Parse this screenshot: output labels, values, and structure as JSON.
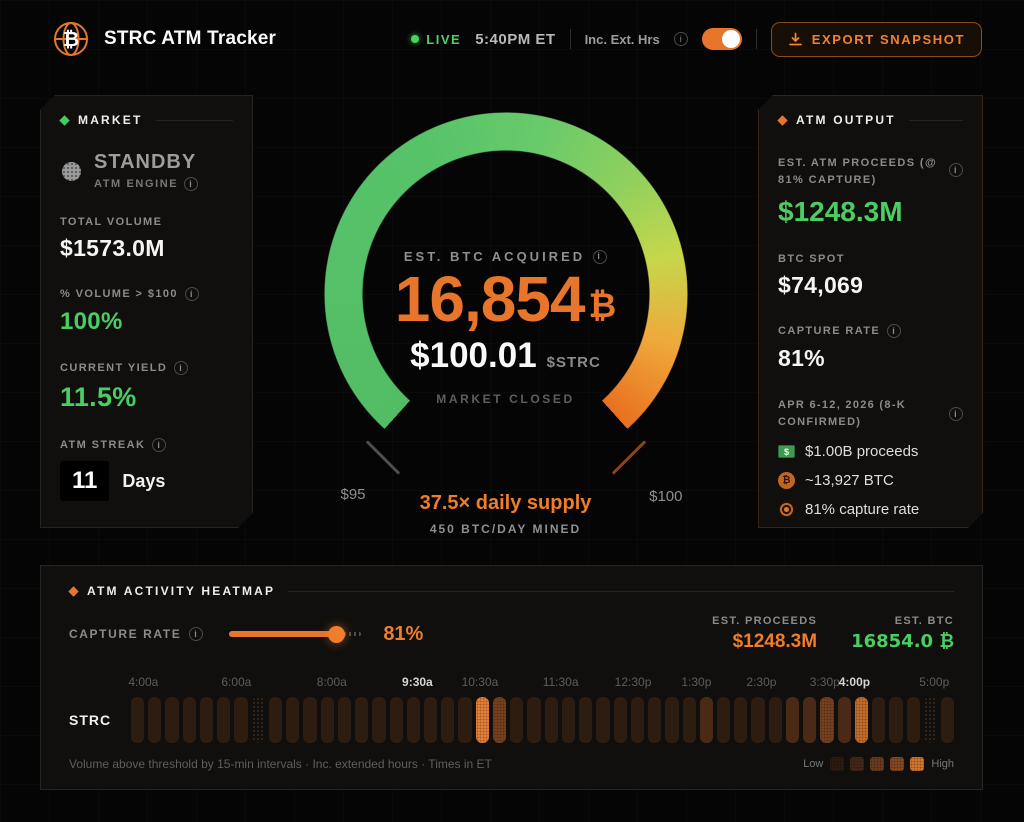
{
  "header": {
    "title": "STRC ATM Tracker",
    "live_label": "LIVE",
    "time": "5:40PM ET",
    "ext_hours_label": "Inc. Ext. Hrs",
    "ext_hours_on": true,
    "export_label": "EXPORT SNAPSHOT"
  },
  "colors": {
    "accent_orange": "#e8752c",
    "accent_green": "#4ccd63",
    "live_green": "#49d35e"
  },
  "market": {
    "section_title": "MARKET",
    "engine_status": "STANDBY",
    "engine_label": "ATM ENGINE",
    "total_volume_label": "TOTAL VOLUME",
    "total_volume": "$1573.0M",
    "pct_volume_label": "% VOLUME > $100",
    "pct_volume": "100%",
    "yield_label": "CURRENT YIELD",
    "yield_value": "11.5%",
    "streak_label": "ATM STREAK",
    "streak_value": "11",
    "streak_unit": "Days"
  },
  "gauge": {
    "label": "EST. BTC ACQUIRED",
    "btc_value": "16,854",
    "btc_symbol": "₿",
    "price": "$100.01",
    "ticker": "$STRC",
    "status": "MARKET CLOSED",
    "min_label": "$95",
    "max_label": "$100",
    "supply_line": "37.5× daily supply",
    "mined_line": "450 BTC/DAY MINED"
  },
  "atm_output": {
    "section_title": "ATM OUTPUT",
    "proceeds_label": "EST. ATM PROCEEDS (@ 81% CAPTURE)",
    "proceeds": "$1248.3M",
    "spot_label": "BTC SPOT",
    "spot": "$74,069",
    "capture_label": "CAPTURE RATE",
    "capture": "81%",
    "schedule_label": "APR 6-12, 2026 (8-K CONFIRMED)",
    "schedule": [
      {
        "icon": "cash-icon",
        "text": "$1.00B proceeds"
      },
      {
        "icon": "btc-icon",
        "text": "~13,927 BTC"
      },
      {
        "icon": "target-icon",
        "text": "81% capture rate"
      }
    ]
  },
  "heatmap": {
    "section_title": "ATM ACTIVITY HEATMAP",
    "capture_label": "CAPTURE RATE",
    "capture_pct": "81%",
    "slider_value": 81,
    "est_proceeds_label": "EST. PROCEEDS",
    "est_proceeds": "$1248.3M",
    "est_btc_label": "EST. BTC",
    "est_btc": "16854.0 ₿",
    "row_label": "STRC",
    "time_labels": [
      {
        "t": "4:00a",
        "x": 1.5,
        "strong": false
      },
      {
        "t": "6:00a",
        "x": 12.8,
        "strong": false
      },
      {
        "t": "8:00a",
        "x": 24.4,
        "strong": false
      },
      {
        "t": "9:30a",
        "x": 34.8,
        "strong": true
      },
      {
        "t": "10:30a",
        "x": 42.4,
        "strong": false
      },
      {
        "t": "11:30a",
        "x": 52.2,
        "strong": false
      },
      {
        "t": "12:30p",
        "x": 61.0,
        "strong": false
      },
      {
        "t": "1:30p",
        "x": 68.7,
        "strong": false
      },
      {
        "t": "2:30p",
        "x": 76.6,
        "strong": false
      },
      {
        "t": "3:30p",
        "x": 84.3,
        "strong": false
      },
      {
        "t": "4:00p",
        "x": 87.9,
        "strong": true
      },
      {
        "t": "5:00p",
        "x": 97.6,
        "strong": false
      }
    ],
    "cells": [
      1,
      1,
      1,
      1,
      1,
      1,
      1,
      0,
      1,
      1,
      1,
      1,
      1,
      1,
      1,
      1,
      1,
      1,
      1,
      1,
      5,
      3,
      1,
      1,
      1,
      1,
      1,
      1,
      1,
      1,
      1,
      1,
      1,
      2,
      1,
      1,
      1,
      1,
      2,
      2,
      3,
      2,
      4,
      1,
      1,
      1,
      0,
      1
    ],
    "level_colors": [
      "#161009",
      "#2d1d11",
      "#4a2a16",
      "#7a4220",
      "#c9702c",
      "#e8813a"
    ],
    "footnote": "Volume above threshold by 15-min intervals · Inc. extended hours · Times in ET",
    "legend_low": "Low",
    "legend_high": "High",
    "legend_colors": [
      "#2c1c11",
      "#45291a",
      "#6b3d20",
      "#8a4a24",
      "#d9782f"
    ]
  }
}
